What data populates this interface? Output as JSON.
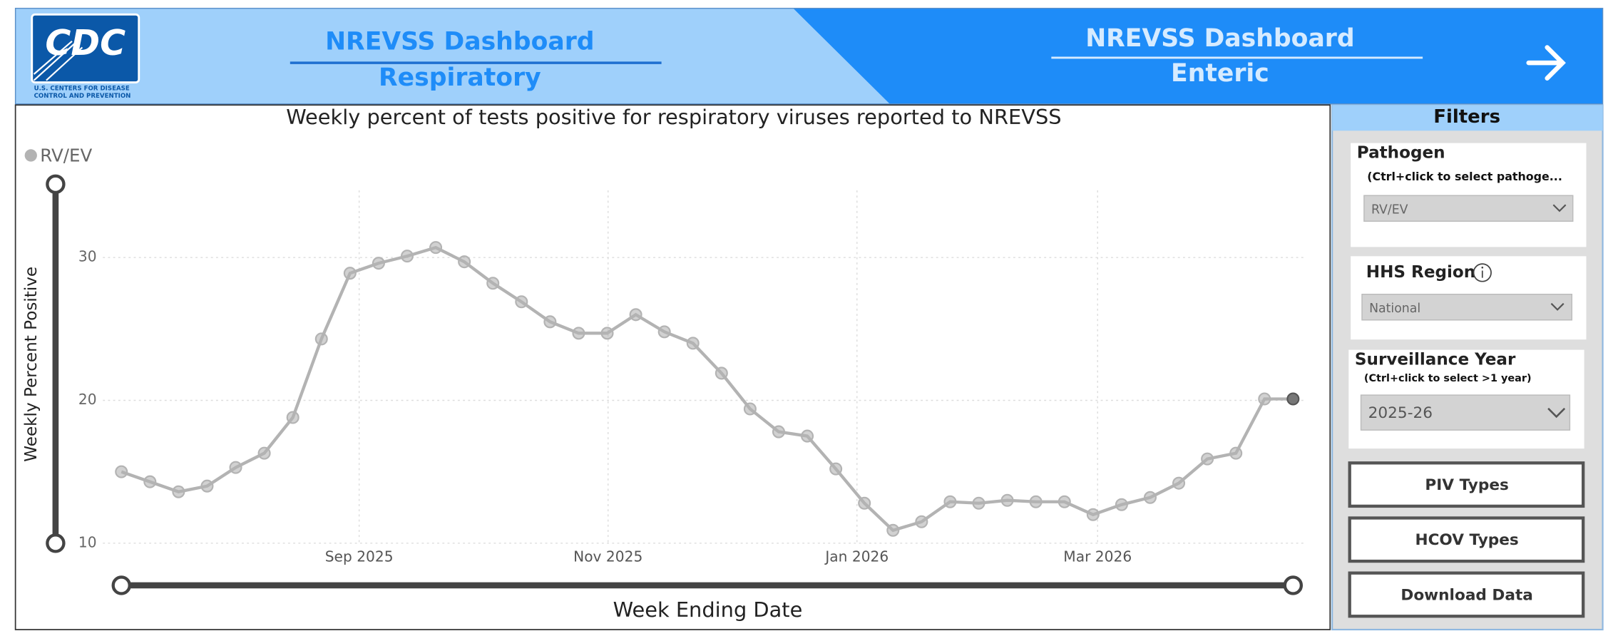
{
  "header": {
    "logo_text": "CDC",
    "logo_caption": [
      "U.S. CENTERS FOR DISEASE",
      "CONTROL AND PREVENTION"
    ],
    "tabs": [
      {
        "title": "NREVSS Dashboard",
        "subtitle": "Respiratory"
      },
      {
        "title": "NREVSS Dashboard",
        "subtitle": "Enteric"
      }
    ]
  },
  "chart_data": {
    "type": "line",
    "title": "Weekly percent of tests positive for respiratory viruses reported to NREVSS",
    "y_label": "Weekly Percent Positive",
    "x_label": "Week Ending Date",
    "categories": [
      null,
      null,
      null,
      null,
      null,
      null,
      null,
      null,
      null,
      null,
      null,
      null,
      null,
      null,
      null,
      null,
      null,
      null,
      null,
      null,
      null,
      null,
      null,
      null,
      null,
      null,
      null,
      null,
      null,
      null,
      null,
      null,
      null,
      null,
      null,
      null,
      null,
      null,
      null,
      null,
      null,
      null
    ],
    "series": [
      {
        "name": "RV/EV",
        "color": "#b3b3b3",
        "values": [
          15.0,
          14.3,
          13.6,
          14.0,
          15.3,
          16.3,
          18.8,
          24.3,
          28.9,
          29.6,
          30.1,
          30.7,
          29.7,
          28.2,
          26.9,
          25.5,
          24.7,
          24.7,
          26.0,
          24.8,
          24.0,
          21.9,
          19.4,
          17.8,
          17.5,
          15.2,
          12.8,
          10.9,
          11.5,
          12.9,
          12.8,
          13.0,
          12.9,
          12.9,
          12.0,
          12.7,
          13.2,
          14.2,
          15.9,
          16.3,
          20.1,
          20.1
        ]
      }
    ],
    "xticks": [
      {
        "value": 8.32,
        "label": "Sep 2025"
      },
      {
        "value": 17.03,
        "label": "Nov 2025"
      },
      {
        "value": 25.74,
        "label": "Jan 2026"
      },
      {
        "value": 34.16,
        "label": "Mar 2026"
      }
    ],
    "ylim": [
      10,
      34.7
    ],
    "yticks": [
      10,
      20,
      30
    ],
    "grid": true,
    "legend": "top-left"
  },
  "filters": {
    "title": "Filters",
    "pathogen": {
      "label": "Pathogen",
      "hint": "(Ctrl+click to select pathoge...",
      "value": "RV/EV"
    },
    "region": {
      "label": "HHS Region",
      "value": "National"
    },
    "year": {
      "label": "Surveillance Year",
      "hint": "(Ctrl+click to select >1 year)",
      "value": "2025-26"
    },
    "buttons": [
      "PIV Types",
      "HCOV Types",
      "Download Data"
    ]
  }
}
